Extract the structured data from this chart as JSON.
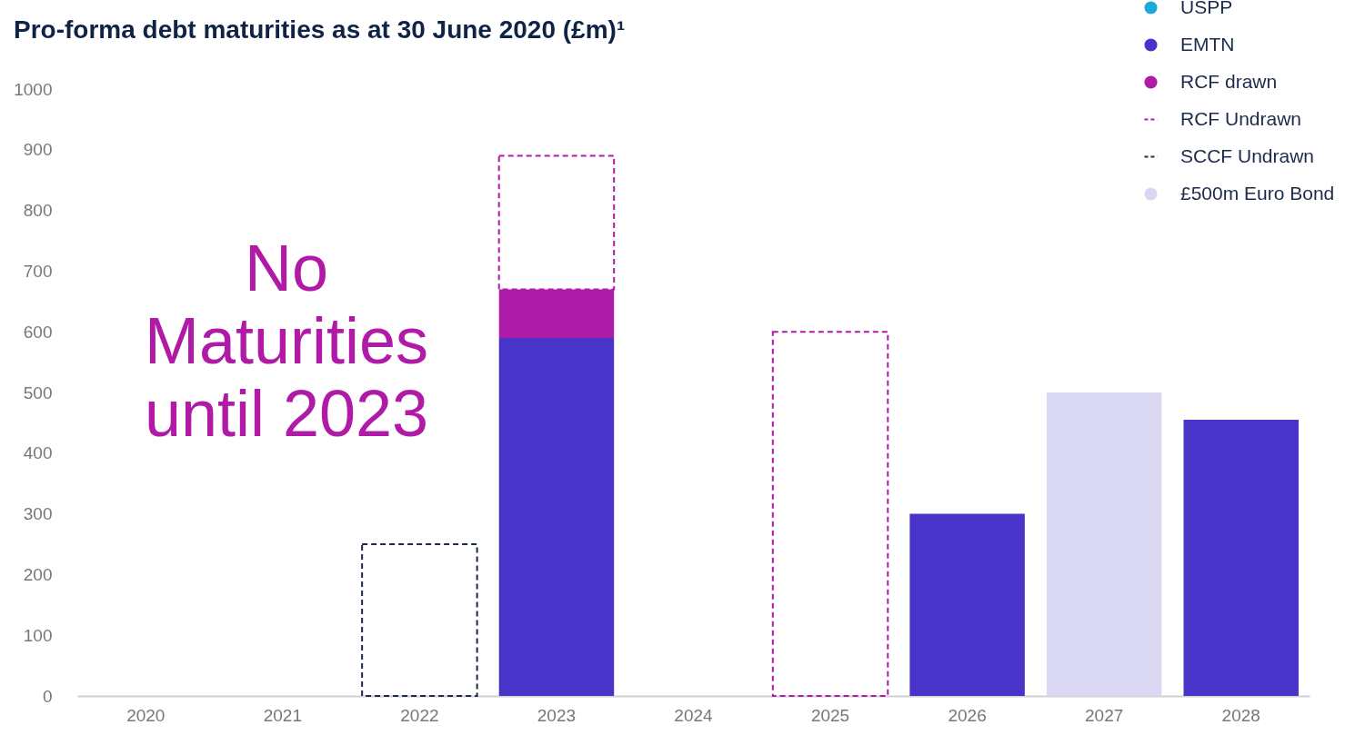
{
  "chart_data": {
    "type": "bar",
    "title": "Pro-forma debt maturities as at 30 June 2020 (£m)¹",
    "categories": [
      "2020",
      "2021",
      "2022",
      "2023",
      "2024",
      "2025",
      "2026",
      "2027",
      "2028"
    ],
    "stacked": true,
    "series": [
      {
        "name": "USPP",
        "color": "#1aabd8",
        "values": [
          null,
          null,
          null,
          null,
          null,
          null,
          null,
          null,
          null
        ]
      },
      {
        "name": "EMTN",
        "color": "#4834c9",
        "values": [
          null,
          null,
          null,
          590,
          null,
          null,
          300,
          null,
          455
        ]
      },
      {
        "name": "RCF drawn",
        "color": "#ae1ba6",
        "values": [
          null,
          null,
          null,
          80,
          null,
          null,
          null,
          null,
          null
        ]
      },
      {
        "name": "RCF Undrawn",
        "color": "#b01aa7",
        "line_style": "dashed",
        "values": [
          null,
          null,
          null,
          220,
          null,
          600,
          null,
          null,
          null
        ]
      },
      {
        "name": "SCCF Undrawn",
        "color": "#1b2a4a",
        "line_style": "dashed",
        "values": [
          null,
          null,
          250,
          null,
          null,
          null,
          null,
          null,
          null
        ]
      },
      {
        "name": "£500m Euro Bond",
        "color": "#dad7f3",
        "values": [
          null,
          null,
          null,
          null,
          null,
          null,
          null,
          500,
          null
        ]
      }
    ],
    "ylim": [
      0,
      1000
    ],
    "yticks": [
      0,
      100,
      200,
      300,
      400,
      500,
      600,
      700,
      800,
      900,
      {
        "value": 1000,
        "label": "1000"
      }
    ],
    "grid": false,
    "legend": "top right",
    "annotations": [
      "No Maturities until 2023"
    ]
  }
}
